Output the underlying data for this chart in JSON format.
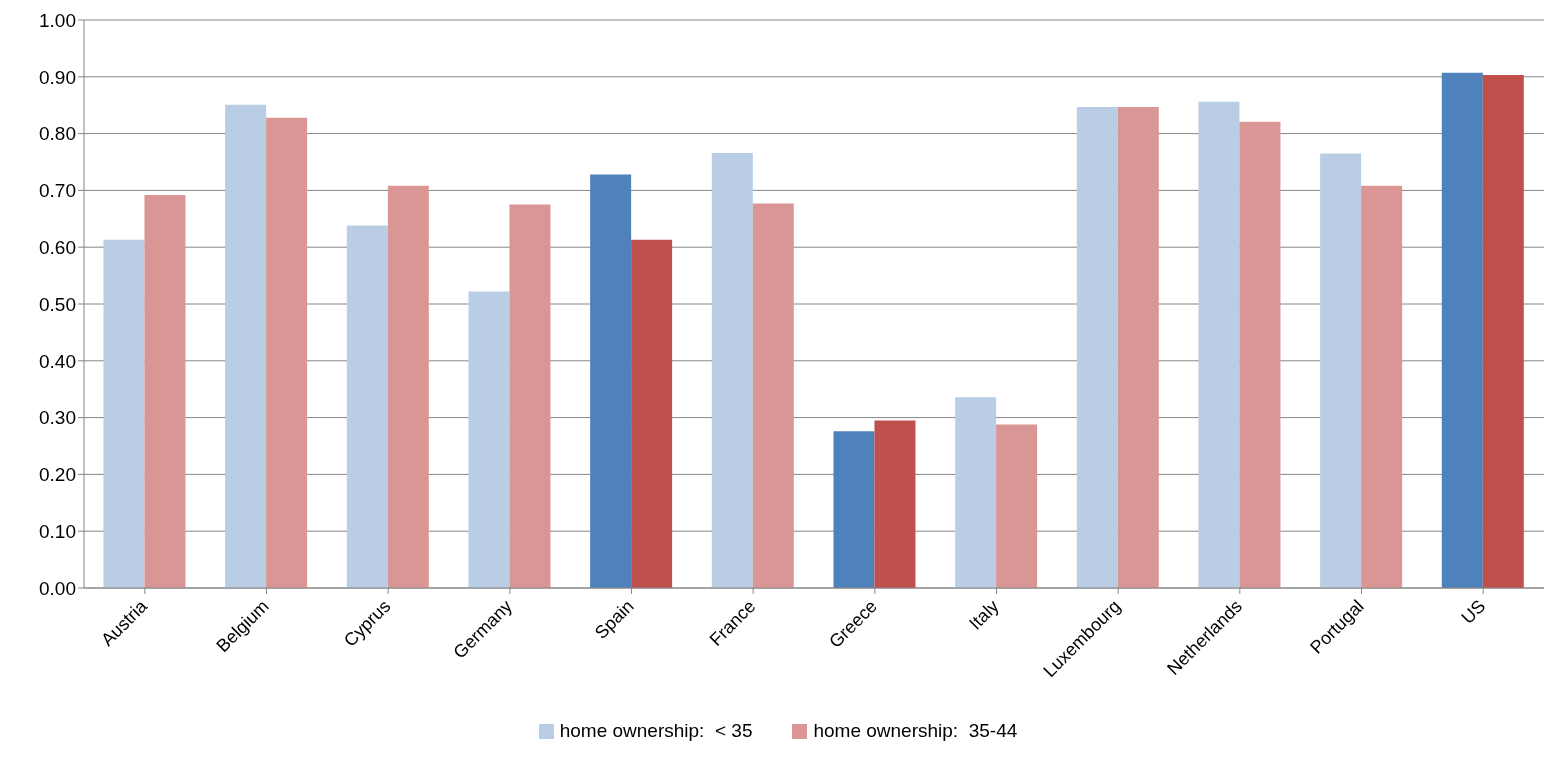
{
  "chart_data": {
    "type": "bar",
    "categories": [
      "Austria",
      "Belgium",
      "Cyprus",
      "Germany",
      "Spain",
      "France",
      "Greece",
      "Italy",
      "Luxembourg",
      "Netherlands",
      "Portugal",
      "US"
    ],
    "series": [
      {
        "name": "home ownership:  < 35",
        "color": "#b9cde5",
        "colors": [
          "#b9cde5",
          "#b9cde5",
          "#b9cde5",
          "#b9cde5",
          "#4f81bd",
          "#b9cde5",
          "#4f81bd",
          "#b9cde5",
          "#b9cde5",
          "#b9cde5",
          "#b9cde5",
          "#4f81bd"
        ],
        "values": [
          0.613,
          0.851,
          0.638,
          0.522,
          0.728,
          0.766,
          0.276,
          0.336,
          0.847,
          0.856,
          0.765,
          0.907
        ]
      },
      {
        "name": "home ownership:  35-44",
        "color": "#d99694",
        "colors": [
          "#d99694",
          "#d99694",
          "#d99694",
          "#d99694",
          "#c0504d",
          "#d99694",
          "#c0504d",
          "#d99694",
          "#d99694",
          "#d99694",
          "#d99694",
          "#c0504d"
        ],
        "values": [
          0.692,
          0.828,
          0.708,
          0.675,
          0.613,
          0.677,
          0.295,
          0.288,
          0.847,
          0.821,
          0.708,
          0.903
        ]
      }
    ],
    "ylim": [
      0,
      1
    ],
    "yticks": [
      {
        "value": 0,
        "label": "0.00"
      },
      {
        "value": 0.1,
        "label": "0.10"
      },
      {
        "value": 0.2,
        "label": "0.20"
      },
      {
        "value": 0.3,
        "label": "0.30"
      },
      {
        "value": 0.4,
        "label": "0.40"
      },
      {
        "value": 0.5,
        "label": "0.50"
      },
      {
        "value": 0.6,
        "label": "0.60"
      },
      {
        "value": 0.7,
        "label": "0.70"
      },
      {
        "value": 0.8,
        "label": "0.80"
      },
      {
        "value": 0.9,
        "label": "0.90"
      },
      {
        "value": 1,
        "label": "1.00"
      }
    ],
    "grid": "y",
    "legend": "bottom"
  }
}
